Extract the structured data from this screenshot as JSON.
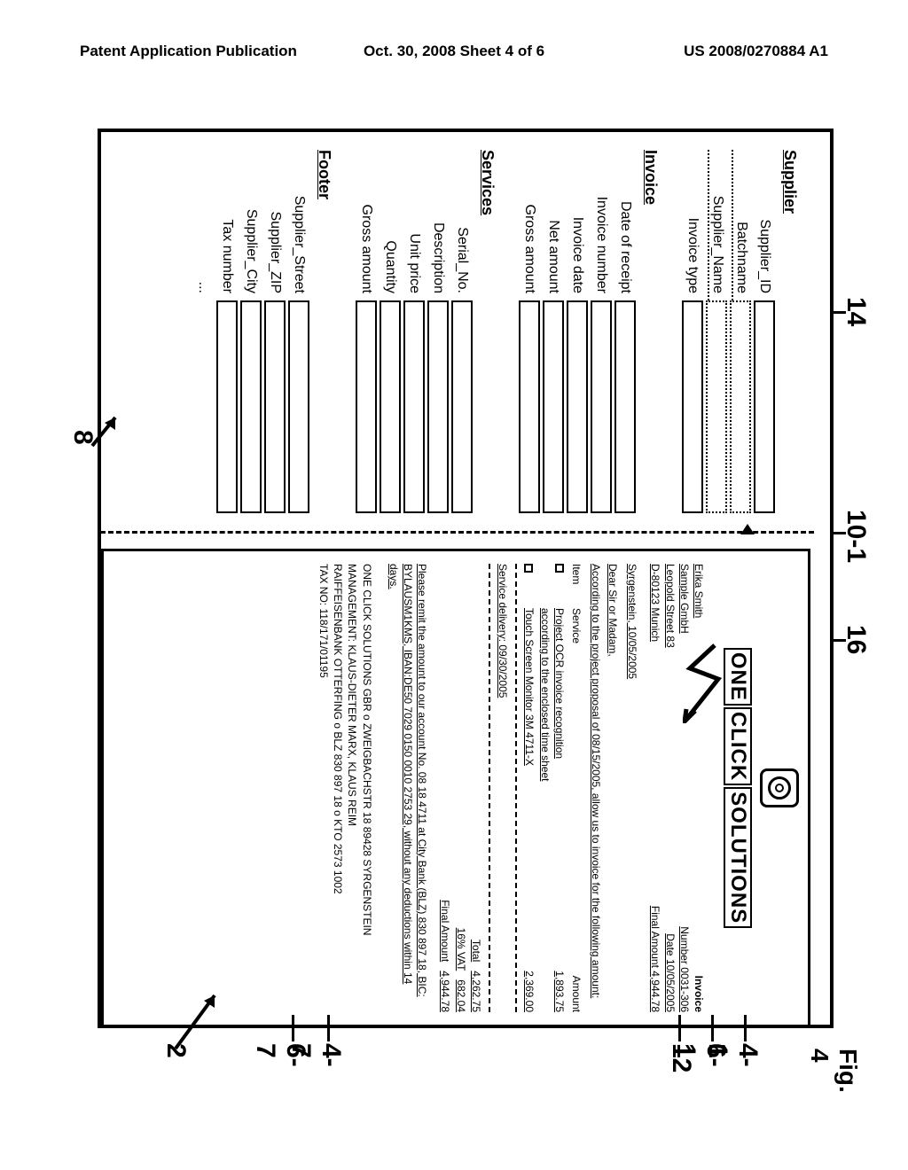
{
  "page_header": {
    "left": "Patent Application Publication",
    "center": "Oct. 30, 2008  Sheet 4 of 6",
    "right": "US 2008/0270884 A1"
  },
  "figure_label": "Fig. 4",
  "ref_labels": {
    "r8": "8",
    "r14": "14",
    "r16": "16",
    "r10_1": "10-1",
    "r4_1": "4-1",
    "r6_1": "6-1",
    "r12": "12",
    "r4_7": "4-7",
    "r6_7": "6-7",
    "r2": "2"
  },
  "left_form": {
    "sections": [
      {
        "title": "Supplier",
        "fields": [
          {
            "label": "Supplier_ID",
            "dotted": false
          },
          {
            "label": "Batchname",
            "dotted": true
          },
          {
            "label": "Supplier_Name",
            "dotted": true
          },
          {
            "label": "Invoice type",
            "dotted": false
          }
        ]
      },
      {
        "title": "Invoice",
        "fields": [
          {
            "label": "Date of receipt",
            "dotted": false
          },
          {
            "label": "Invoice number",
            "dotted": false
          },
          {
            "label": "Invoice date",
            "dotted": false
          },
          {
            "label": "Net amount",
            "dotted": false
          },
          {
            "label": "Gross amount",
            "dotted": false
          }
        ]
      },
      {
        "title": "Services",
        "fields": [
          {
            "label": "Serial_No.",
            "dotted": false
          },
          {
            "label": "Description",
            "dotted": false
          },
          {
            "label": "Unit price",
            "dotted": false
          },
          {
            "label": "Quantity",
            "dotted": false
          },
          {
            "label": "Gross amount",
            "dotted": false
          }
        ]
      },
      {
        "title": "Footer",
        "fields": [
          {
            "label": "Supplier_Street",
            "dotted": false
          },
          {
            "label": "Supplier_ZIP",
            "dotted": false
          },
          {
            "label": "Supplier_City",
            "dotted": false
          },
          {
            "label": "Tax number",
            "dotted": false
          },
          {
            "label": "...",
            "dotted": false
          }
        ]
      }
    ]
  },
  "invoice_doc": {
    "company_words": [
      "ONE",
      "CLICK",
      "SOLUTIONS"
    ],
    "addr_left": [
      "Erika Smith",
      "Sample GmbH",
      "Leopold Street 83",
      "D-80123 Munich"
    ],
    "addr_right_hdr": "Invoice",
    "addr_right": [
      {
        "k": "Number",
        "v": "0031-306"
      },
      {
        "k": "Date",
        "v": "10/05/2005"
      },
      {
        "k": "Final Amount",
        "v": "4,944.78"
      }
    ],
    "place_date": "Syrgenstein, 10/05/2005",
    "salutation": "Dear Sir or Madam,",
    "intro": "According to the project proposal of 08/15/2005, allow us to invoice for the following amount:",
    "items_header": {
      "c1": "Item",
      "c2": "Service",
      "c3": "Amount"
    },
    "items": [
      {
        "c1": "□",
        "c2a": "Project OCR invoice recognition",
        "c2b": "according to the enclosed time sheet",
        "c3": "1,893.75"
      },
      {
        "c1": "□",
        "c2a": "Touch Screen Monitor 3M 4711-X",
        "c2b": "",
        "c3": "2,369.00"
      }
    ],
    "service_delivery": "Service delivery: 09/30/2005",
    "totals": [
      {
        "k": "Total",
        "v": "4,262.75"
      },
      {
        "k": "16% VAT",
        "v": "682.04"
      },
      {
        "k": "Final Amount",
        "v": "4,944.78"
      }
    ],
    "bank": "Please remit the amount to our account No. 08 18 4711 at City Bank (BLZ) 830 897 18, BIC: BYLAUSM1KMS, IBAN:DE50 7029 0150 0010 2753 29, without any deductions within 14 days.",
    "footer_lines": [
      "ONE CLICK SOLUTIONS GBR o ZWEIGBACHSTR 18 89428 SYRGENSTEIN",
      "MANAGEMENT: KLAUS-DIETER MARX, KLAUS REIM",
      "RAIFFEISENBANK OTTERFING o BLZ 830 897 18 o KTO 2573 1002",
      "TAX NO: 118/171/01195"
    ]
  },
  "colors": {
    "border": "#000000",
    "bg": "#ffffff"
  }
}
